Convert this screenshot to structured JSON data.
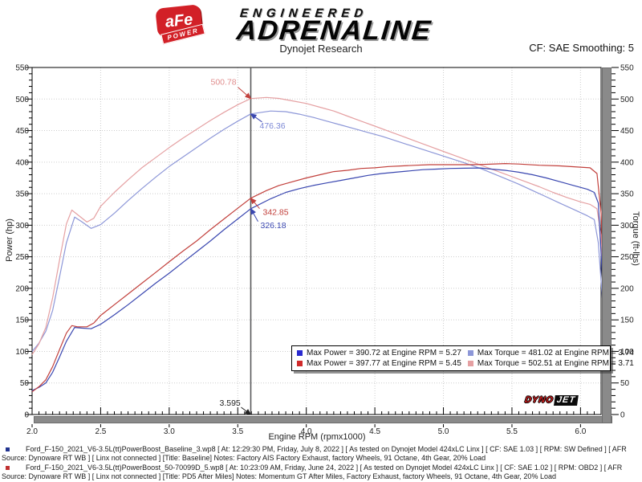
{
  "header": {
    "badge": {
      "top": "aFe",
      "bottom": "POWER"
    },
    "brand_line1": "ENGINEERED",
    "brand_line2": "ADRENALINE",
    "title": "Dynojet Research",
    "smoothing_label": "CF: SAE Smoothing: 5"
  },
  "chart_data": {
    "type": "line",
    "title": "Dynojet Research",
    "xlabel": "Engine RPM (rpmx1000)",
    "ylabel_left": "Power (hp)",
    "ylabel_right": "Torque (ft-lbs)",
    "xlim": [
      2.0,
      6.15
    ],
    "ylim": [
      0,
      550
    ],
    "x_major_step": 0.5,
    "x_minor_step": 0.05,
    "y_major_step": 50,
    "y_minor_step": 10,
    "grid": "dotted",
    "cursor_rpm": 3.595,
    "series": [
      {
        "name": "Baseline Power (hp)",
        "color": "#3a47b0",
        "points": [
          [
            2.0,
            38
          ],
          [
            2.05,
            43
          ],
          [
            2.1,
            50
          ],
          [
            2.15,
            67
          ],
          [
            2.2,
            91
          ],
          [
            2.25,
            116
          ],
          [
            2.31,
            138
          ],
          [
            2.36,
            137
          ],
          [
            2.43,
            136
          ],
          [
            2.5,
            143
          ],
          [
            2.6,
            158
          ],
          [
            2.7,
            174
          ],
          [
            2.8,
            191
          ],
          [
            2.9,
            208
          ],
          [
            3.0,
            224
          ],
          [
            3.1,
            241
          ],
          [
            3.2,
            258
          ],
          [
            3.3,
            275
          ],
          [
            3.4,
            293
          ],
          [
            3.5,
            310
          ],
          [
            3.595,
            326.18
          ],
          [
            3.74,
            342
          ],
          [
            3.85,
            352
          ],
          [
            3.95,
            358
          ],
          [
            4.05,
            363
          ],
          [
            4.15,
            367
          ],
          [
            4.25,
            371
          ],
          [
            4.35,
            375
          ],
          [
            4.45,
            379
          ],
          [
            4.55,
            382
          ],
          [
            4.65,
            384
          ],
          [
            4.75,
            386
          ],
          [
            4.85,
            388
          ],
          [
            4.95,
            389
          ],
          [
            5.05,
            390
          ],
          [
            5.15,
            390.4
          ],
          [
            5.27,
            390.72
          ],
          [
            5.35,
            389
          ],
          [
            5.45,
            387
          ],
          [
            5.55,
            384
          ],
          [
            5.65,
            380
          ],
          [
            5.75,
            375
          ],
          [
            5.85,
            369
          ],
          [
            5.95,
            363
          ],
          [
            6.05,
            357
          ],
          [
            6.1,
            352
          ],
          [
            6.13,
            335
          ],
          [
            6.16,
            215
          ],
          [
            6.18,
            125
          ]
        ]
      },
      {
        "name": "Baseline Torque (ft-lbs)",
        "color": "#8d97d8",
        "points": [
          [
            2.0,
            100
          ],
          [
            2.05,
            113
          ],
          [
            2.1,
            132
          ],
          [
            2.15,
            165
          ],
          [
            2.2,
            218
          ],
          [
            2.25,
            272
          ],
          [
            2.31,
            313
          ],
          [
            2.36,
            306
          ],
          [
            2.43,
            295
          ],
          [
            2.5,
            301
          ],
          [
            2.6,
            319
          ],
          [
            2.7,
            339
          ],
          [
            2.8,
            358
          ],
          [
            2.9,
            376
          ],
          [
            3.0,
            393
          ],
          [
            3.1,
            408
          ],
          [
            3.2,
            423
          ],
          [
            3.3,
            438
          ],
          [
            3.4,
            452
          ],
          [
            3.5,
            465
          ],
          [
            3.595,
            476.36
          ],
          [
            3.74,
            481.02
          ],
          [
            3.85,
            480
          ],
          [
            3.95,
            476
          ],
          [
            4.05,
            471
          ],
          [
            4.15,
            465
          ],
          [
            4.25,
            459
          ],
          [
            4.35,
            453
          ],
          [
            4.45,
            447
          ],
          [
            4.55,
            441
          ],
          [
            4.65,
            434
          ],
          [
            4.75,
            427
          ],
          [
            4.85,
            420
          ],
          [
            4.95,
            413
          ],
          [
            5.05,
            406
          ],
          [
            5.15,
            399
          ],
          [
            5.27,
            390
          ],
          [
            5.35,
            383
          ],
          [
            5.45,
            374
          ],
          [
            5.55,
            365
          ],
          [
            5.65,
            355
          ],
          [
            5.75,
            345
          ],
          [
            5.85,
            335
          ],
          [
            5.95,
            325
          ],
          [
            6.05,
            315
          ],
          [
            6.1,
            309
          ],
          [
            6.13,
            272
          ],
          [
            6.16,
            182
          ],
          [
            6.18,
            122
          ]
        ]
      },
      {
        "name": "PD5 After Miles Power (hp)",
        "color": "#c2403c",
        "points": [
          [
            2.0,
            36
          ],
          [
            2.05,
            44
          ],
          [
            2.1,
            55
          ],
          [
            2.15,
            76
          ],
          [
            2.2,
            103
          ],
          [
            2.25,
            129
          ],
          [
            2.29,
            141
          ],
          [
            2.33,
            139
          ],
          [
            2.4,
            139
          ],
          [
            2.45,
            145
          ],
          [
            2.5,
            157
          ],
          [
            2.6,
            174
          ],
          [
            2.7,
            191
          ],
          [
            2.8,
            208
          ],
          [
            2.9,
            225
          ],
          [
            3.0,
            242
          ],
          [
            3.1,
            259
          ],
          [
            3.2,
            275
          ],
          [
            3.3,
            293
          ],
          [
            3.4,
            310
          ],
          [
            3.5,
            327
          ],
          [
            3.595,
            342.85
          ],
          [
            3.71,
            355
          ],
          [
            3.8,
            363
          ],
          [
            3.9,
            369
          ],
          [
            4.0,
            375
          ],
          [
            4.1,
            380
          ],
          [
            4.2,
            385
          ],
          [
            4.3,
            387
          ],
          [
            4.4,
            390
          ],
          [
            4.5,
            391
          ],
          [
            4.6,
            393
          ],
          [
            4.7,
            394
          ],
          [
            4.8,
            395
          ],
          [
            4.9,
            396
          ],
          [
            5.0,
            396
          ],
          [
            5.1,
            396
          ],
          [
            5.2,
            396
          ],
          [
            5.3,
            396.5
          ],
          [
            5.45,
            397.77
          ],
          [
            5.55,
            397
          ],
          [
            5.7,
            395
          ],
          [
            5.85,
            394
          ],
          [
            6.0,
            392
          ],
          [
            6.07,
            391
          ],
          [
            6.12,
            382
          ],
          [
            6.15,
            320
          ],
          [
            6.17,
            205
          ],
          [
            6.19,
            138
          ]
        ]
      },
      {
        "name": "PD5 After Miles Torque (ft-lbs)",
        "color": "#e5a0a2",
        "points": [
          [
            2.0,
            95
          ],
          [
            2.05,
            112
          ],
          [
            2.1,
            138
          ],
          [
            2.15,
            185
          ],
          [
            2.2,
            245
          ],
          [
            2.25,
            302
          ],
          [
            2.29,
            324
          ],
          [
            2.33,
            317
          ],
          [
            2.4,
            305
          ],
          [
            2.45,
            311
          ],
          [
            2.5,
            330
          ],
          [
            2.6,
            352
          ],
          [
            2.7,
            372
          ],
          [
            2.8,
            391
          ],
          [
            2.9,
            407
          ],
          [
            3.0,
            423
          ],
          [
            3.1,
            438
          ],
          [
            3.2,
            452
          ],
          [
            3.3,
            466
          ],
          [
            3.4,
            479
          ],
          [
            3.5,
            491
          ],
          [
            3.595,
            500.78
          ],
          [
            3.71,
            502.51
          ],
          [
            3.8,
            501
          ],
          [
            3.9,
            497
          ],
          [
            4.0,
            493
          ],
          [
            4.1,
            487
          ],
          [
            4.2,
            481
          ],
          [
            4.3,
            473
          ],
          [
            4.4,
            465
          ],
          [
            4.5,
            457
          ],
          [
            4.6,
            449
          ],
          [
            4.7,
            441
          ],
          [
            4.8,
            433
          ],
          [
            4.9,
            425
          ],
          [
            5.0,
            417
          ],
          [
            5.1,
            409
          ],
          [
            5.2,
            401
          ],
          [
            5.3,
            393
          ],
          [
            5.4,
            385
          ],
          [
            5.5,
            377
          ],
          [
            5.6,
            369
          ],
          [
            5.7,
            361
          ],
          [
            5.8,
            352
          ],
          [
            5.9,
            344
          ],
          [
            6.0,
            337
          ],
          [
            6.07,
            333
          ],
          [
            6.12,
            326
          ],
          [
            6.15,
            284
          ],
          [
            6.17,
            186
          ],
          [
            6.19,
            132
          ]
        ]
      }
    ],
    "annotations": [
      {
        "text": "500.78",
        "color": "#e08d8d",
        "arrow_color": "#c2403c",
        "rpm": 3.595,
        "value": 500.78,
        "label_offset": [
          -50,
          -17
        ],
        "tail_offset": [
          -16,
          -14
        ]
      },
      {
        "text": "476.36",
        "color": "#7d89d6",
        "arrow_color": "#3a47b0",
        "rpm": 3.595,
        "value": 476.36,
        "label_offset": [
          11,
          18
        ],
        "tail_offset": [
          14,
          10
        ]
      },
      {
        "text": "342.85",
        "color": "#c2403c",
        "arrow_color": "#c2403c",
        "rpm": 3.595,
        "value": 342.85,
        "label_offset": [
          15,
          21
        ],
        "tail_offset": [
          11,
          13
        ]
      },
      {
        "text": "326.18",
        "color": "#3a47b0",
        "arrow_color": "#3a47b0",
        "rpm": 3.595,
        "value": 326.18,
        "label_offset": [
          12,
          24
        ],
        "tail_offset": [
          9,
          16
        ]
      },
      {
        "text": "3.595",
        "color": "#222222",
        "arrow_color": "#222222",
        "rpm": 3.595,
        "value": 0,
        "label_offset": [
          -39,
          -11
        ],
        "tail_offset": [
          -12,
          -9
        ]
      }
    ],
    "legend": {
      "position": "bottom-center",
      "items": [
        {
          "swatch": "#2a2ad0",
          "label": "Max Power = 390.72 at Engine RPM = 5.27"
        },
        {
          "swatch": "#8d97d8",
          "label": "Max Torque = 481.02 at Engine RPM = 3.74"
        },
        {
          "swatch": "#d02a2a",
          "label": "Max Power = 397.77 at Engine RPM = 5.45"
        },
        {
          "swatch": "#e5a0a2",
          "label": "Max Torque = 502.51 at Engine RPM = 3.71"
        }
      ]
    },
    "watermark": {
      "part1": "DYNO",
      "part2": "JET"
    }
  },
  "footer": {
    "runs": [
      {
        "bullet_color": "#21338f",
        "text": "Ford_F-150_2021_V6-3.5L(tt)PowerBoost_Baseline_3.wp8 [ At: 12:29:30 PM, Friday, July 8, 2022 ] [ As tested on Dynojet Model 424xLC Linx ] [ CF: SAE 1.03 ] [ RPM: SW Defined ] [ AFR Source: Dynoware RT WB ] [ Linx not connected ] [Title: Baseline]  Notes: Factory AIS  Factory Exhaust, factory Wheels, 91 Octane, 4th Gear, 20% Load"
      },
      {
        "bullet_color": "#c03030",
        "text": "Ford_F-150_2021_V6-3.5L(tt)PowerBoost_50-70099D_5.wp8 [ At: 10:23:09 AM, Friday, June 24, 2022 ] [ As tested on Dynojet Model 424xLC Linx ] [ CF: SAE 1.02 ] [ RPM: OBD2 ] [ AFR Source: Dynoware RT WB ] [ Linx not connected ] [Title: PD5 After Miles]  Notes: Momentum GT After Miles, Factory Exhaust, factory Wheels, 91 Octane, 4th Gear, 20% Load"
      }
    ]
  }
}
